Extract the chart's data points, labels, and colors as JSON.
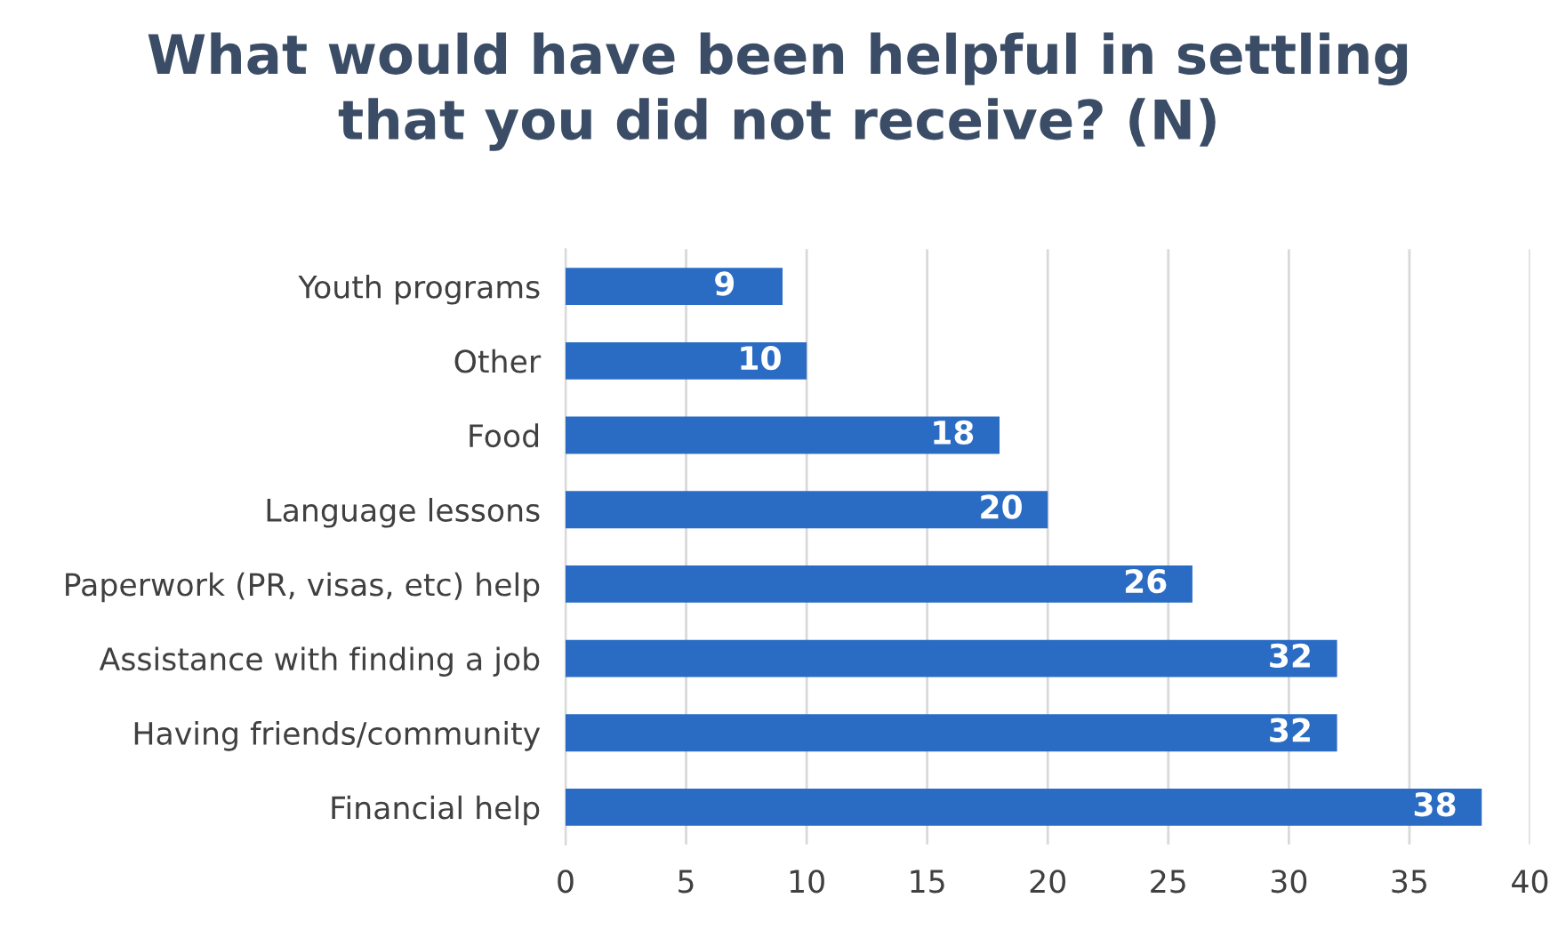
{
  "chart_data": {
    "type": "bar",
    "orientation": "horizontal",
    "title": "What would have been helpful in settling\nthat you did not receive? (N)",
    "categories": [
      "Youth programs",
      "Other",
      "Food",
      "Language lessons",
      "Paperwork (PR, visas, etc) help",
      "Assistance with finding a job",
      "Having friends/community",
      "Financial help"
    ],
    "values": [
      9,
      10,
      18,
      20,
      26,
      32,
      32,
      38
    ],
    "color": "#2a6cc4",
    "xlim": [
      0,
      40
    ],
    "xticks": [
      0,
      5,
      10,
      15,
      20,
      25,
      30,
      35,
      40
    ],
    "grid": "x",
    "data_labels": true
  }
}
